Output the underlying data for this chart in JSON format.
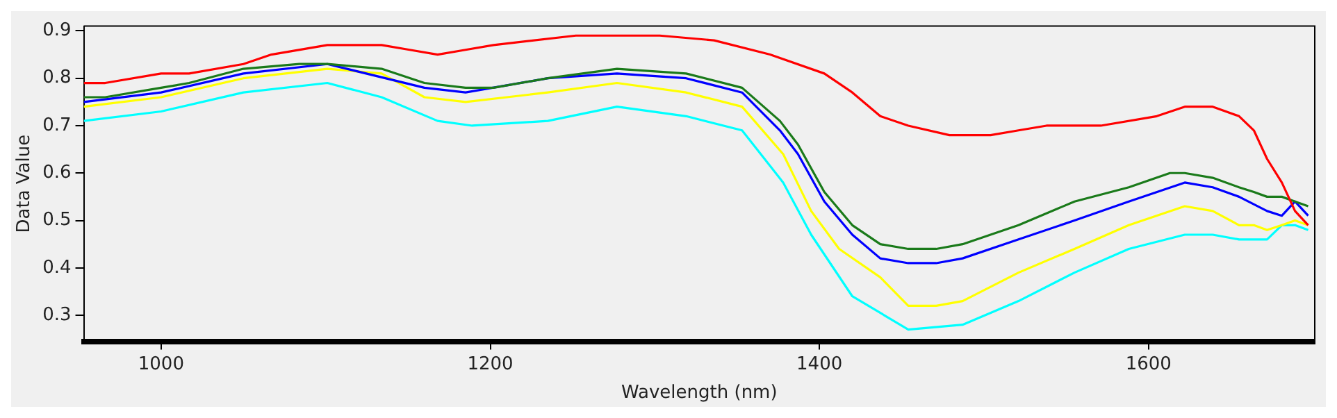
{
  "chart_data": {
    "type": "line",
    "xlabel": "Wavelength (nm)",
    "ylabel": "Data Value",
    "xlim": [
      953,
      1701
    ],
    "ylim": [
      0.245,
      0.91
    ],
    "xticks": [
      1000,
      1200,
      1400,
      1600
    ],
    "yticks": [
      0.3,
      0.4,
      0.5,
      0.6,
      0.7,
      0.8,
      0.9
    ],
    "grid": false,
    "legend": false,
    "marker": "none",
    "line_style": "solid",
    "series": [
      {
        "color": "#ff0000",
        "x": [
          953,
          966,
          1000,
          1017,
          1050,
          1067,
          1101,
          1134,
          1151,
          1168,
          1185,
          1202,
          1252,
          1303,
          1336,
          1370,
          1403,
          1420,
          1437,
          1454,
          1479,
          1504,
          1521,
          1538,
          1571,
          1605,
          1622,
          1639,
          1655,
          1664,
          1672,
          1681,
          1689,
          1697
        ],
        "values": [
          0.79,
          0.79,
          0.81,
          0.81,
          0.83,
          0.85,
          0.87,
          0.87,
          0.86,
          0.85,
          0.86,
          0.87,
          0.89,
          0.89,
          0.88,
          0.85,
          0.81,
          0.77,
          0.72,
          0.7,
          0.68,
          0.68,
          0.69,
          0.7,
          0.7,
          0.72,
          0.74,
          0.74,
          0.72,
          0.69,
          0.63,
          0.58,
          0.52,
          0.49
        ]
      },
      {
        "color": "#1a7a1a",
        "x": [
          953,
          966,
          1000,
          1017,
          1050,
          1084,
          1101,
          1134,
          1160,
          1185,
          1202,
          1235,
          1277,
          1319,
          1353,
          1376,
          1387,
          1403,
          1420,
          1437,
          1454,
          1471,
          1487,
          1521,
          1555,
          1588,
          1613,
          1622,
          1639,
          1655,
          1664,
          1672,
          1681,
          1689,
          1697
        ],
        "values": [
          0.76,
          0.76,
          0.78,
          0.79,
          0.82,
          0.83,
          0.83,
          0.82,
          0.79,
          0.78,
          0.78,
          0.8,
          0.82,
          0.81,
          0.78,
          0.71,
          0.66,
          0.56,
          0.49,
          0.45,
          0.44,
          0.44,
          0.45,
          0.49,
          0.54,
          0.57,
          0.6,
          0.6,
          0.59,
          0.57,
          0.56,
          0.55,
          0.55,
          0.54,
          0.53
        ]
      },
      {
        "color": "#0000ff",
        "x": [
          953,
          1000,
          1050,
          1101,
          1160,
          1185,
          1235,
          1277,
          1319,
          1353,
          1376,
          1387,
          1403,
          1420,
          1437,
          1454,
          1471,
          1487,
          1521,
          1555,
          1588,
          1622,
          1639,
          1655,
          1672,
          1681,
          1689,
          1697
        ],
        "values": [
          0.75,
          0.77,
          0.81,
          0.83,
          0.78,
          0.77,
          0.8,
          0.81,
          0.8,
          0.77,
          0.69,
          0.64,
          0.54,
          0.47,
          0.42,
          0.41,
          0.41,
          0.42,
          0.46,
          0.5,
          0.54,
          0.58,
          0.57,
          0.55,
          0.52,
          0.51,
          0.54,
          0.51
        ]
      },
      {
        "color": "#ffff00",
        "x": [
          953,
          1000,
          1050,
          1101,
          1134,
          1160,
          1185,
          1235,
          1277,
          1319,
          1353,
          1378,
          1395,
          1412,
          1437,
          1454,
          1471,
          1487,
          1521,
          1555,
          1588,
          1622,
          1639,
          1655,
          1664,
          1672,
          1681,
          1689,
          1697
        ],
        "values": [
          0.74,
          0.76,
          0.8,
          0.82,
          0.81,
          0.76,
          0.75,
          0.77,
          0.79,
          0.77,
          0.74,
          0.64,
          0.52,
          0.44,
          0.38,
          0.32,
          0.32,
          0.33,
          0.39,
          0.44,
          0.49,
          0.53,
          0.52,
          0.49,
          0.49,
          0.48,
          0.49,
          0.5,
          0.49
        ]
      },
      {
        "color": "#00ffff",
        "x": [
          953,
          1000,
          1050,
          1101,
          1134,
          1168,
          1189,
          1235,
          1277,
          1319,
          1353,
          1378,
          1395,
          1420,
          1454,
          1487,
          1521,
          1555,
          1588,
          1622,
          1639,
          1655,
          1672,
          1681,
          1689,
          1697
        ],
        "values": [
          0.71,
          0.73,
          0.77,
          0.79,
          0.76,
          0.71,
          0.7,
          0.71,
          0.74,
          0.72,
          0.69,
          0.58,
          0.47,
          0.34,
          0.27,
          0.28,
          0.33,
          0.39,
          0.44,
          0.47,
          0.47,
          0.46,
          0.46,
          0.49,
          0.49,
          0.48
        ]
      }
    ]
  }
}
